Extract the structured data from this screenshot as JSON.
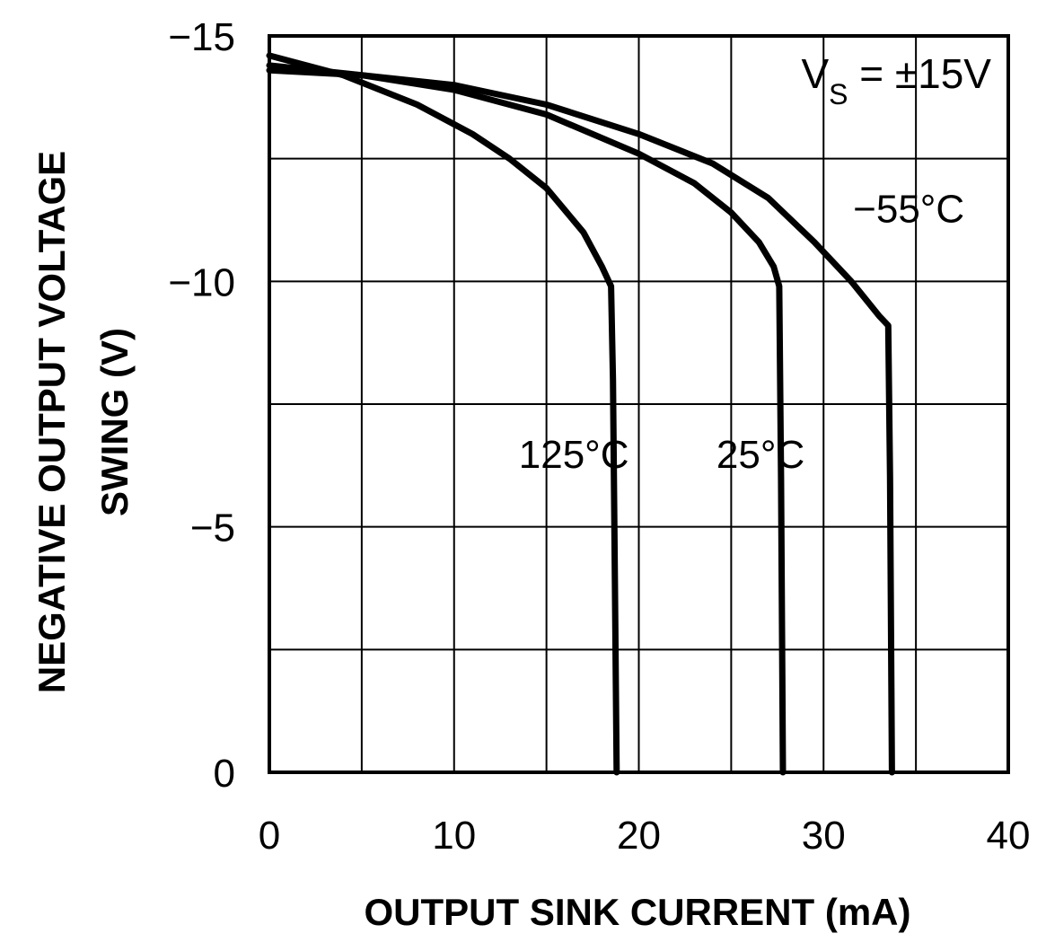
{
  "chart_data": {
    "type": "line",
    "title": "",
    "xlabel": "OUTPUT SINK CURRENT (mA)",
    "ylabel_line1": "NEGATIVE OUTPUT VOLTAGE",
    "ylabel_line2": "SWING (V)",
    "xlim": [
      0,
      40
    ],
    "ylim": [
      0,
      -15
    ],
    "x_ticks": [
      0,
      10,
      20,
      30,
      40
    ],
    "x_tick_labels": [
      "0",
      "10",
      "20",
      "30",
      "40"
    ],
    "y_ticks": [
      0,
      -5,
      -10,
      -15
    ],
    "y_tick_labels": [
      "0",
      "−5",
      "−10",
      "−15"
    ],
    "grid": true,
    "x_grid_step": 5,
    "y_grid_step": -2.5,
    "annotation_vs": "VS = ±15V",
    "vs_main": "V",
    "vs_sub": "S",
    "vs_rest": " = ±15V",
    "series": [
      {
        "name": "125°C",
        "points": [
          [
            0,
            -14.6
          ],
          [
            4,
            -14.2
          ],
          [
            8,
            -13.6
          ],
          [
            11,
            -13.0
          ],
          [
            13,
            -12.5
          ],
          [
            15,
            -11.9
          ],
          [
            17,
            -11.0
          ],
          [
            18,
            -10.3
          ],
          [
            18.5,
            -9.9
          ],
          [
            18.6,
            -8.0
          ],
          [
            18.7,
            -4.0
          ],
          [
            18.8,
            0
          ]
        ]
      },
      {
        "name": "25°C",
        "points": [
          [
            0,
            -14.4
          ],
          [
            5,
            -14.2
          ],
          [
            10,
            -13.9
          ],
          [
            15,
            -13.4
          ],
          [
            20,
            -12.6
          ],
          [
            23,
            -12.0
          ],
          [
            25,
            -11.4
          ],
          [
            26.5,
            -10.8
          ],
          [
            27.3,
            -10.3
          ],
          [
            27.6,
            -9.9
          ],
          [
            27.7,
            -6.0
          ],
          [
            27.8,
            0
          ]
        ]
      },
      {
        "name": "−55°C",
        "points": [
          [
            0,
            -14.3
          ],
          [
            5,
            -14.2
          ],
          [
            10,
            -14.0
          ],
          [
            15,
            -13.6
          ],
          [
            20,
            -13.0
          ],
          [
            24,
            -12.4
          ],
          [
            27,
            -11.7
          ],
          [
            29.5,
            -10.8
          ],
          [
            31.5,
            -10.0
          ],
          [
            33,
            -9.3
          ],
          [
            33.5,
            -9.1
          ],
          [
            33.6,
            -6.0
          ],
          [
            33.7,
            0
          ]
        ]
      }
    ],
    "series_label_positions_in_data_units": {
      "125°C": [
        13.5,
        -6.2
      ],
      "25°C": [
        24.2,
        -6.2
      ],
      "−55°C": [
        31.6,
        -11.2
      ]
    }
  }
}
